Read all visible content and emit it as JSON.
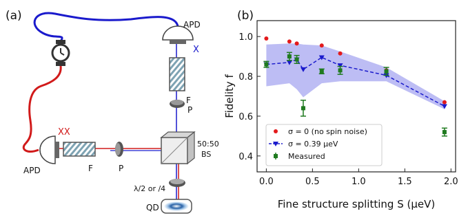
{
  "panel_a": {
    "label": "(a)",
    "apd_top": "APD",
    "x_label": "X",
    "f_top": "F",
    "p_top": "P",
    "bs_label_1": "50:50",
    "bs_label_2": "BS",
    "wp_label": "λ/2 or /4",
    "qd_label": "QD",
    "apd_left": "APD",
    "xx_label": "XX",
    "f_left": "F",
    "p_left": "P",
    "colors": {
      "x_beam": "#1a1acc",
      "xx_beam": "#d11a1a"
    }
  },
  "panel_b": {
    "label": "(b)",
    "chart_data": {
      "type": "scatter",
      "xlabel": "Fine structure splitting S (μeV)",
      "ylabel": "Fidelity f",
      "xlim": [
        -0.1,
        2.05
      ],
      "ylim": [
        0.32,
        1.08
      ],
      "xticks": [
        "0.0",
        "0.5",
        "1.0",
        "1.5",
        "2.0"
      ],
      "yticks": [
        "0.4",
        "0.6",
        "0.8",
        "1.0"
      ],
      "legend_position": "lower-left",
      "series": [
        {
          "name": "σ = 0 (no spin noise)",
          "marker": "dot",
          "color": "#e31a1c",
          "x": [
            0.0,
            0.25,
            0.33,
            0.6,
            0.8,
            1.3,
            1.93
          ],
          "y": [
            0.99,
            0.975,
            0.965,
            0.955,
            0.915,
            0.83,
            0.67
          ]
        },
        {
          "name": "σ = 0.39 μeV",
          "marker": "triangle-down",
          "line": "dashed",
          "color": "#1a1acc",
          "x": [
            0.0,
            0.25,
            0.33,
            0.4,
            0.6,
            0.8,
            1.3,
            1.93
          ],
          "y": [
            0.86,
            0.87,
            0.885,
            0.835,
            0.895,
            0.855,
            0.805,
            0.65
          ],
          "band_upper": [
            0.96,
            0.965,
            0.965,
            0.96,
            0.955,
            0.925,
            0.845,
            0.675
          ],
          "band_lower": [
            0.75,
            0.765,
            0.735,
            0.695,
            0.765,
            0.775,
            0.775,
            0.635
          ]
        },
        {
          "name": "Measured",
          "marker": "square-errorbar",
          "color": "#1f7a1f",
          "x": [
            0.0,
            0.25,
            0.33,
            0.4,
            0.6,
            0.8,
            1.3,
            1.93
          ],
          "y": [
            0.86,
            0.9,
            0.885,
            0.64,
            0.825,
            0.83,
            0.825,
            0.52
          ],
          "err": [
            0.015,
            0.02,
            0.02,
            0.04,
            0.012,
            0.02,
            0.02,
            0.02
          ]
        }
      ]
    }
  }
}
